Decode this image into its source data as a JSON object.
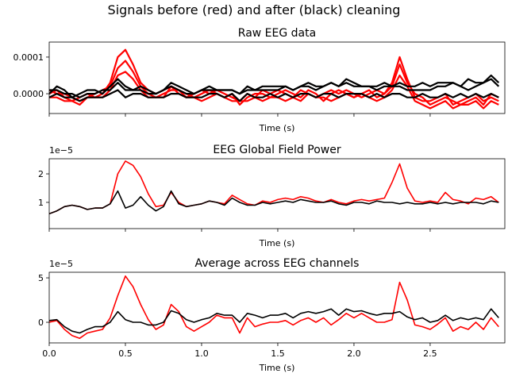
{
  "chart_data": [
    {
      "type": "line",
      "suptitle": "Signals before (red) and after (black) cleaning",
      "title": "Raw EEG data",
      "xlabel": "Time (s)",
      "ylabel": "",
      "xlim": [
        0,
        2.99
      ],
      "ylim": [
        -5.4e-05,
        0.000141
      ],
      "xticks": [
        0,
        0.5,
        1.0,
        1.5,
        2.0,
        2.5
      ],
      "xtick_labels": [
        "",
        "",
        "",
        "",
        "",
        ""
      ],
      "yticks": [
        0,
        0.0001
      ],
      "ytick_labels": [
        "0.0000",
        "0.0001"
      ],
      "times": [
        0,
        0.05,
        0.1,
        0.15,
        0.2,
        0.25,
        0.3,
        0.35,
        0.4,
        0.45,
        0.5,
        0.55,
        0.6,
        0.65,
        0.7,
        0.75,
        0.8,
        0.85,
        0.9,
        0.95,
        1.0,
        1.05,
        1.1,
        1.15,
        1.2,
        1.25,
        1.3,
        1.35,
        1.4,
        1.45,
        1.5,
        1.55,
        1.6,
        1.65,
        1.7,
        1.75,
        1.8,
        1.85,
        1.9,
        1.95,
        2.0,
        2.05,
        2.1,
        2.15,
        2.2,
        2.25,
        2.3,
        2.35,
        2.4,
        2.45,
        2.5,
        2.55,
        2.6,
        2.65,
        2.7,
        2.75,
        2.8,
        2.85,
        2.9,
        2.95
      ],
      "series": [
        {
          "color": "#ff0000",
          "values": [
            0,
            1e-05,
            -1e-05,
            -2e-05,
            -1e-05,
            0,
            -1e-05,
            0,
            3e-05,
            0.0001,
            0.00012,
            8e-05,
            3e-05,
            1e-05,
            0,
            1e-05,
            2e-05,
            0,
            -1e-05,
            0,
            1e-05,
            0,
            1e-05,
            0,
            -1e-05,
            -2e-05,
            0,
            -1e-05,
            1e-05,
            0,
            1e-05,
            0,
            -1e-05,
            1e-05,
            0,
            -1e-05,
            0,
            1e-05,
            0,
            1e-05,
            0,
            -1e-05,
            0,
            1e-05,
            0,
            3e-05,
            0.0001,
            4e-05,
            -1e-05,
            -2e-05,
            -2e-05,
            -1e-05,
            0,
            -3e-05,
            -2e-05,
            -1e-05,
            0,
            -2e-05,
            -1e-05,
            -2e-05
          ]
        },
        {
          "color": "#ff0000",
          "values": [
            1e-05,
            0,
            0,
            -1e-05,
            -2e-05,
            -1e-05,
            0,
            1e-05,
            2e-05,
            7e-05,
            9e-05,
            6e-05,
            2e-05,
            0,
            -1e-05,
            0,
            1e-05,
            1e-05,
            0,
            -1e-05,
            0,
            1e-05,
            0,
            -1e-05,
            0,
            -3e-05,
            -1e-05,
            0,
            0,
            -1e-05,
            0,
            1e-05,
            0,
            -1e-05,
            1e-05,
            0,
            -2e-05,
            0,
            1e-05,
            0,
            -1e-05,
            0,
            1e-05,
            -1e-05,
            0,
            2e-05,
            8e-05,
            3e-05,
            0,
            -1e-05,
            -3e-05,
            -2e-05,
            -1e-05,
            -2e-05,
            -3e-05,
            -2e-05,
            -1e-05,
            -3e-05,
            0,
            -1e-05
          ]
        },
        {
          "color": "#ff0000",
          "values": [
            -1e-05,
            -1e-05,
            -2e-05,
            -2e-05,
            -3e-05,
            -1e-05,
            -1e-05,
            -1e-05,
            1e-05,
            5e-05,
            6e-05,
            4e-05,
            1e-05,
            -1e-05,
            -1e-05,
            -1e-05,
            2e-05,
            1e-05,
            -1e-05,
            -1e-05,
            -2e-05,
            -1e-05,
            0,
            -1e-05,
            -2e-05,
            -2e-05,
            -2e-05,
            -1e-05,
            -2e-05,
            -1e-05,
            -1e-05,
            -2e-05,
            -1e-05,
            -2e-05,
            0,
            -1e-05,
            -1e-05,
            -2e-05,
            -1e-05,
            0,
            -1e-05,
            0,
            -1e-05,
            -2e-05,
            -1e-05,
            1e-05,
            5e-05,
            2e-05,
            -2e-05,
            -3e-05,
            -4e-05,
            -3e-05,
            -2e-05,
            -4e-05,
            -3e-05,
            -3e-05,
            -2e-05,
            -4e-05,
            -2e-05,
            -3e-05
          ]
        },
        {
          "color": "#000000",
          "values": [
            1e-05,
            1e-05,
            0,
            0,
            -1e-05,
            0,
            0,
            1e-05,
            1e-05,
            3e-05,
            1e-05,
            1e-05,
            1e-05,
            0,
            0,
            1e-05,
            2e-05,
            1e-05,
            0,
            0,
            1e-05,
            1e-05,
            1e-05,
            1e-05,
            1e-05,
            0,
            1e-05,
            1e-05,
            1e-05,
            1e-05,
            1e-05,
            2e-05,
            1e-05,
            2e-05,
            2e-05,
            1e-05,
            2e-05,
            3e-05,
            2e-05,
            3e-05,
            2e-05,
            2e-05,
            2e-05,
            1e-05,
            2e-05,
            2e-05,
            2e-05,
            1e-05,
            1e-05,
            1e-05,
            1e-05,
            2e-05,
            2e-05,
            3e-05,
            2e-05,
            1e-05,
            2e-05,
            3e-05,
            4e-05,
            2e-05
          ]
        },
        {
          "color": "#000000",
          "values": [
            -1e-05,
            0,
            -1e-05,
            -1e-05,
            -2e-05,
            -1e-05,
            -1e-05,
            -1e-05,
            0,
            1e-05,
            -1e-05,
            0,
            0,
            -1e-05,
            -1e-05,
            -1e-05,
            0,
            0,
            -1e-05,
            -1e-05,
            -1e-05,
            0,
            0,
            -1e-05,
            0,
            -2e-05,
            0,
            -1e-05,
            -1e-05,
            0,
            -1e-05,
            0,
            -1e-05,
            0,
            0,
            -1e-05,
            0,
            0,
            -1e-05,
            0,
            0,
            0,
            -1e-05,
            0,
            -1e-05,
            0,
            0,
            -1e-05,
            -1e-05,
            0,
            -1e-05,
            -1e-05,
            0,
            -1e-05,
            0,
            -1e-05,
            0,
            -1e-05,
            0,
            -1e-05
          ]
        },
        {
          "color": "#000000",
          "values": [
            0,
            2e-05,
            1e-05,
            -1e-05,
            0,
            1e-05,
            1e-05,
            0,
            2e-05,
            4e-05,
            2e-05,
            1e-05,
            2e-05,
            1e-05,
            0,
            1e-05,
            3e-05,
            2e-05,
            1e-05,
            0,
            1e-05,
            2e-05,
            1e-05,
            1e-05,
            1e-05,
            0,
            2e-05,
            1e-05,
            2e-05,
            2e-05,
            2e-05,
            2e-05,
            1e-05,
            2e-05,
            3e-05,
            2e-05,
            2e-05,
            3e-05,
            2e-05,
            4e-05,
            3e-05,
            2e-05,
            2e-05,
            2e-05,
            3e-05,
            2e-05,
            3e-05,
            2e-05,
            2e-05,
            3e-05,
            2e-05,
            3e-05,
            3e-05,
            3e-05,
            2e-05,
            4e-05,
            3e-05,
            3e-05,
            5e-05,
            3e-05
          ]
        }
      ]
    },
    {
      "type": "line",
      "title": "EEG Global Field Power",
      "xlabel": "Time (s)",
      "offset_label": "1e−5",
      "xlim": [
        0,
        2.99
      ],
      "ylim": [
        0.08,
        2.53
      ],
      "xticks": [
        0,
        0.5,
        1.0,
        1.5,
        2.0,
        2.5
      ],
      "xtick_labels": [
        "",
        "",
        "",
        "",
        "",
        ""
      ],
      "yticks": [
        1,
        2
      ],
      "ytick_labels": [
        "1",
        "2"
      ],
      "series": [
        {
          "color": "#ff0000",
          "values": [
            0.6,
            0.7,
            0.85,
            0.9,
            0.85,
            0.75,
            0.8,
            0.8,
            0.95,
            2.0,
            2.45,
            2.3,
            1.9,
            1.3,
            0.85,
            0.9,
            1.35,
            1.0,
            0.85,
            0.9,
            0.95,
            1.05,
            1.0,
            0.95,
            1.25,
            1.1,
            0.95,
            0.9,
            1.05,
            1.0,
            1.1,
            1.15,
            1.1,
            1.2,
            1.15,
            1.05,
            1.0,
            1.1,
            1.0,
            0.95,
            1.05,
            1.1,
            1.05,
            1.1,
            1.15,
            1.7,
            2.35,
            1.5,
            1.05,
            1.0,
            1.05,
            1.0,
            1.35,
            1.1,
            1.05,
            0.95,
            1.15,
            1.1,
            1.2,
            1.0
          ]
        },
        {
          "color": "#000000",
          "values": [
            0.6,
            0.7,
            0.85,
            0.9,
            0.85,
            0.75,
            0.8,
            0.8,
            0.95,
            1.4,
            0.8,
            0.9,
            1.2,
            0.9,
            0.7,
            0.85,
            1.4,
            0.95,
            0.85,
            0.9,
            0.95,
            1.05,
            1.0,
            0.9,
            1.15,
            1.0,
            0.9,
            0.9,
            1.0,
            0.95,
            1.0,
            1.05,
            1.0,
            1.1,
            1.05,
            1.0,
            1.0,
            1.05,
            0.95,
            0.9,
            1.0,
            1.0,
            0.95,
            1.05,
            1.0,
            1.0,
            0.95,
            1.0,
            0.95,
            0.95,
            1.0,
            0.95,
            1.0,
            0.95,
            1.0,
            1.0,
            1.0,
            0.95,
            1.05,
            1.0
          ]
        }
      ]
    },
    {
      "type": "line",
      "title": "Average across EEG channels",
      "xlabel": "Time (s)",
      "offset_label": "1e−5",
      "xlim": [
        0,
        2.99
      ],
      "ylim": [
        -2.32,
        5.63
      ],
      "xticks": [
        0,
        0.5,
        1.0,
        1.5,
        2.0,
        2.5
      ],
      "xtick_labels": [
        "0.0",
        "0.5",
        "1.0",
        "1.5",
        "2.0",
        "2.5"
      ],
      "yticks": [
        0,
        5
      ],
      "ytick_labels": [
        "0",
        "5"
      ],
      "series": [
        {
          "color": "#ff0000",
          "values": [
            0,
            0.2,
            -0.8,
            -1.5,
            -1.8,
            -1.2,
            -1,
            -0.8,
            0.5,
            3,
            5.2,
            4,
            2,
            0.3,
            -0.8,
            -0.3,
            2,
            1.2,
            -0.5,
            -1,
            -0.5,
            0,
            0.8,
            0.5,
            0.5,
            -1.2,
            0.5,
            -0.5,
            -0.2,
            0,
            0,
            0.2,
            -0.3,
            0.2,
            0.5,
            0,
            0.5,
            -0.3,
            0.3,
            1,
            0.5,
            1,
            0.5,
            0,
            0,
            0.3,
            4.5,
            2.5,
            -0.3,
            -0.5,
            -0.8,
            -0.2,
            0.5,
            -1,
            -0.5,
            -0.8,
            0,
            -0.8,
            0.5,
            -0.5
          ]
        },
        {
          "color": "#000000",
          "values": [
            0.2,
            0.3,
            -0.5,
            -1,
            -1.2,
            -0.8,
            -0.5,
            -0.5,
            0,
            1.2,
            0.3,
            0,
            0,
            -0.3,
            -0.3,
            0,
            1.3,
            1,
            0.3,
            0,
            0.3,
            0.5,
            1,
            0.8,
            0.8,
            0,
            1,
            0.8,
            0.5,
            0.8,
            0.8,
            1,
            0.5,
            1,
            1.2,
            1,
            1.2,
            1.5,
            0.8,
            1.5,
            1.2,
            1.3,
            1,
            0.8,
            1,
            1,
            1.2,
            0.6,
            0.3,
            0.5,
            0,
            0.2,
            0.8,
            0.2,
            0.5,
            0.3,
            0.5,
            0.3,
            1.5,
            0.5
          ]
        }
      ]
    }
  ]
}
